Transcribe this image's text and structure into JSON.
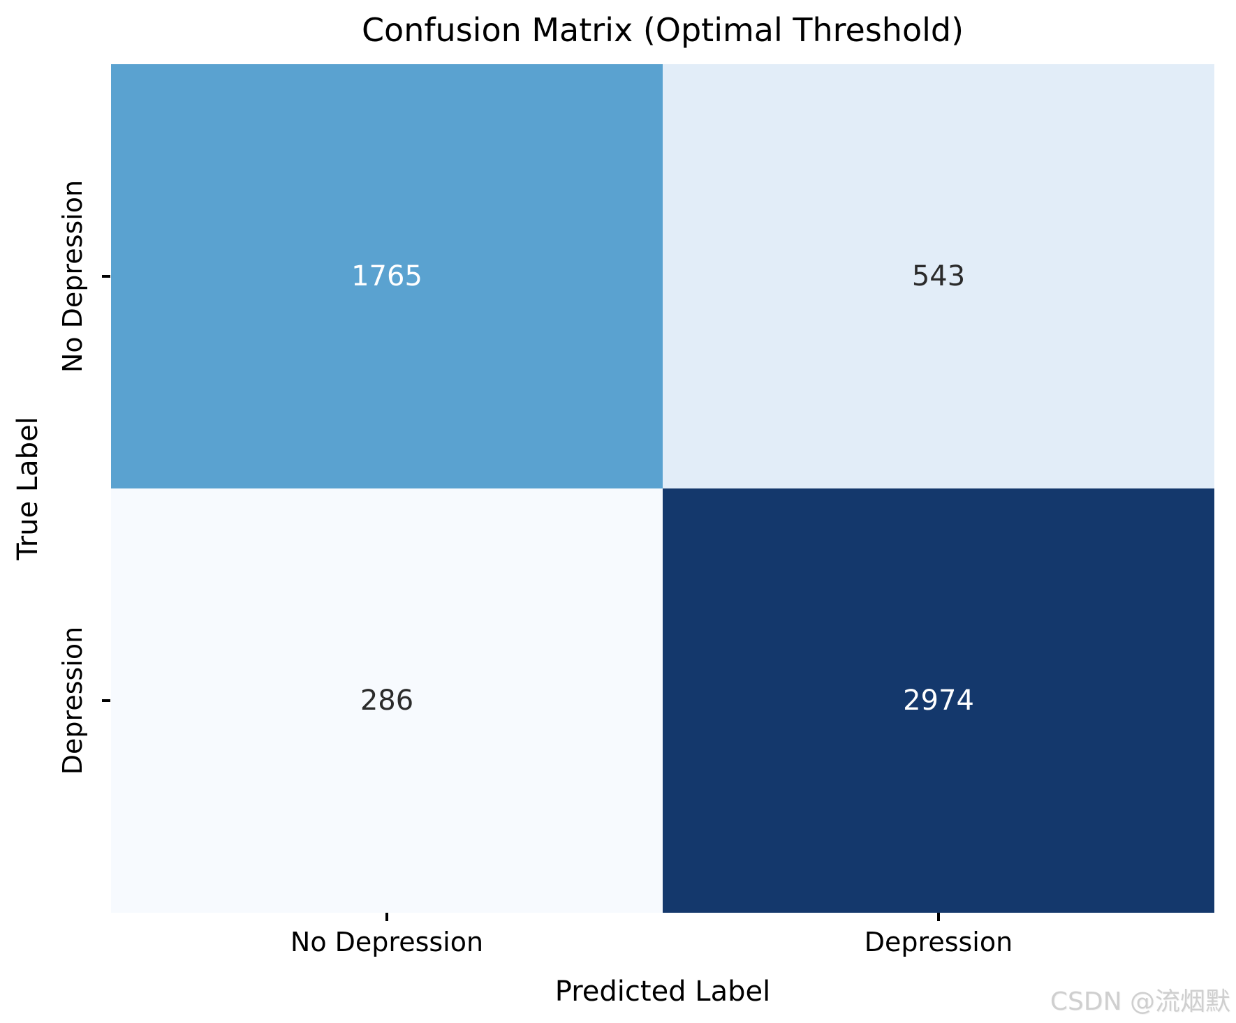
{
  "title": "Confusion Matrix (Optimal Threshold)",
  "axes": {
    "x_label": "Predicted Label",
    "y_label": "True Label",
    "x_ticks": [
      "No Depression",
      "Depression"
    ],
    "y_ticks": [
      "No Depression",
      "Depression"
    ]
  },
  "cells": {
    "tl": {
      "value": "1765",
      "bg": "#5aa2d0",
      "fg": "#ffffff"
    },
    "tr": {
      "value": "543",
      "bg": "#e2edf8",
      "fg": "#2b2b2b"
    },
    "bl": {
      "value": "286",
      "bg": "#f7fafe",
      "fg": "#2b2b2b"
    },
    "br": {
      "value": "2974",
      "bg": "#14386c",
      "fg": "#ffffff"
    }
  },
  "watermark": "CSDN @流烟默",
  "colors": {
    "axis_text": "#000000",
    "tick_mark": "#000000",
    "watermark_gray": "#cfcfcf"
  },
  "chart_data": {
    "type": "heatmap",
    "title": "Confusion Matrix (Optimal Threshold)",
    "xlabel": "Predicted Label",
    "ylabel": "True Label",
    "x_categories": [
      "No Depression",
      "Depression"
    ],
    "y_categories": [
      "No Depression",
      "Depression"
    ],
    "matrix": [
      [
        1765,
        543
      ],
      [
        286,
        2974
      ]
    ],
    "annotations": [
      [
        "1765",
        "543"
      ],
      [
        "286",
        "2974"
      ]
    ],
    "colormap": "Blues",
    "cell_colors": [
      [
        "#5aa2d0",
        "#e2edf8"
      ],
      [
        "#f7fafe",
        "#14386c"
      ]
    ],
    "grid": false,
    "legend": "none"
  }
}
